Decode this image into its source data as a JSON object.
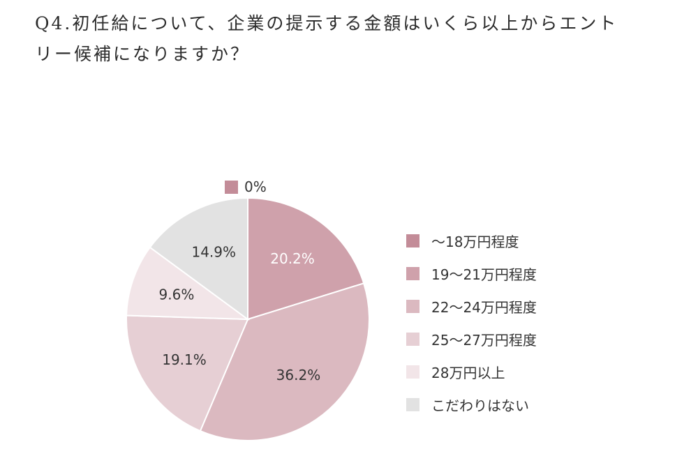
{
  "title_lines": [
    "Q4.初任給について、企業の提示する金額はいくら以上からエント",
    "リー候補になりますか？"
  ],
  "zero_label": {
    "text": "0%",
    "color": "#c38c98"
  },
  "chart_data": {
    "type": "pie",
    "title": "Q4.初任給について、企業の提示する金額はいくら以上からエントリー候補になりますか？",
    "start": "12 o'clock",
    "direction": "clockwise",
    "legend_position": "right",
    "slices": [
      {
        "label": "～18万円程度",
        "value": 0,
        "display": "0%",
        "color": "#c38c98",
        "text_color": "#333333"
      },
      {
        "label": "19～21万円程度",
        "value": 20.2,
        "display": "20.2%",
        "color": "#cfa1ab",
        "text_color": "#ffffff"
      },
      {
        "label": "22～24万円程度",
        "value": 36.2,
        "display": "36.2%",
        "color": "#dbb9c0",
        "text_color": "#333333"
      },
      {
        "label": "25～27万円程度",
        "value": 19.1,
        "display": "19.1%",
        "color": "#e6cfd4",
        "text_color": "#333333"
      },
      {
        "label": "28万円以上",
        "value": 9.6,
        "display": "9.6%",
        "color": "#f2e5e8",
        "text_color": "#333333"
      },
      {
        "label": "こだわりはない",
        "value": 14.9,
        "display": "14.9%",
        "color": "#e2e2e2",
        "text_color": "#333333"
      }
    ]
  }
}
